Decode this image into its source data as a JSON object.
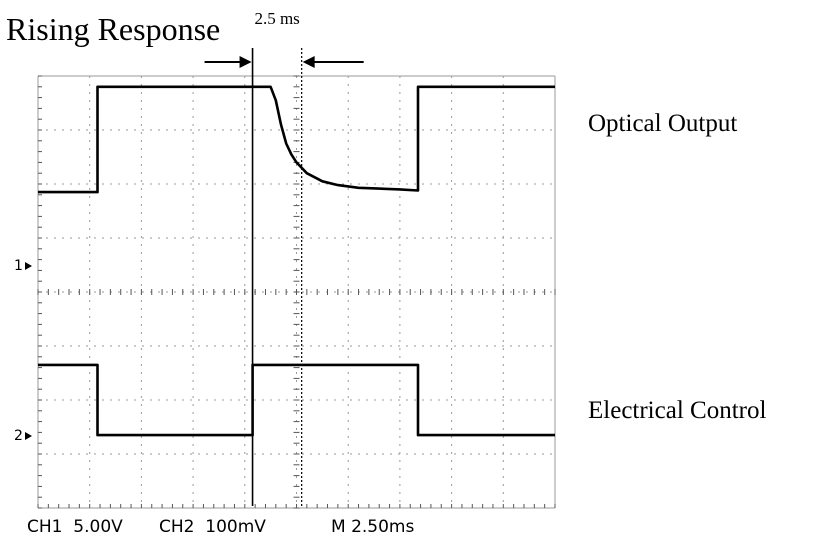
{
  "title": "Rising Response",
  "annotation": {
    "label": "2.5 ms"
  },
  "trace_labels": {
    "optical": "Optical Output",
    "electrical": "Electrical Control"
  },
  "markers": {
    "ch1": "1",
    "ch2": "2"
  },
  "status_bar": {
    "ch1": "CH1  5.00V",
    "ch2": "CH2  100mV",
    "timebase": "M 2.50ms"
  },
  "colors": {
    "trace": "#000000",
    "grid": "#9a9a9a",
    "background": "#ffffff"
  },
  "chart_data": {
    "type": "line",
    "title": "Rising Response",
    "xlabel": "",
    "ylabel": "",
    "grid": true,
    "x_unit": "div",
    "y_unit": "div",
    "xlim": [
      0,
      10
    ],
    "ylim": [
      0,
      8
    ],
    "series": [
      {
        "name": "Optical Output",
        "points": [
          [
            0.0,
            5.85
          ],
          [
            1.15,
            5.85
          ],
          [
            1.15,
            7.8
          ],
          [
            4.15,
            7.8
          ],
          [
            4.5,
            7.8
          ],
          [
            4.6,
            7.55
          ],
          [
            4.7,
            7.1
          ],
          [
            4.8,
            6.75
          ],
          [
            4.9,
            6.55
          ],
          [
            5.0,
            6.4
          ],
          [
            5.2,
            6.2
          ],
          [
            5.5,
            6.05
          ],
          [
            5.8,
            5.98
          ],
          [
            6.2,
            5.93
          ],
          [
            7.0,
            5.9
          ],
          [
            7.35,
            5.88
          ],
          [
            7.35,
            7.8
          ],
          [
            10.0,
            7.8
          ]
        ]
      },
      {
        "name": "Electrical Control",
        "points": [
          [
            0.0,
            2.65
          ],
          [
            1.15,
            2.65
          ],
          [
            1.15,
            1.35
          ],
          [
            4.15,
            1.35
          ],
          [
            4.15,
            2.65
          ],
          [
            7.35,
            2.65
          ],
          [
            7.35,
            1.35
          ],
          [
            10.0,
            1.35
          ]
        ]
      }
    ],
    "annotations": [
      {
        "text": "2.5 ms",
        "x_start": 4.15,
        "x_end": 5.1
      }
    ]
  }
}
